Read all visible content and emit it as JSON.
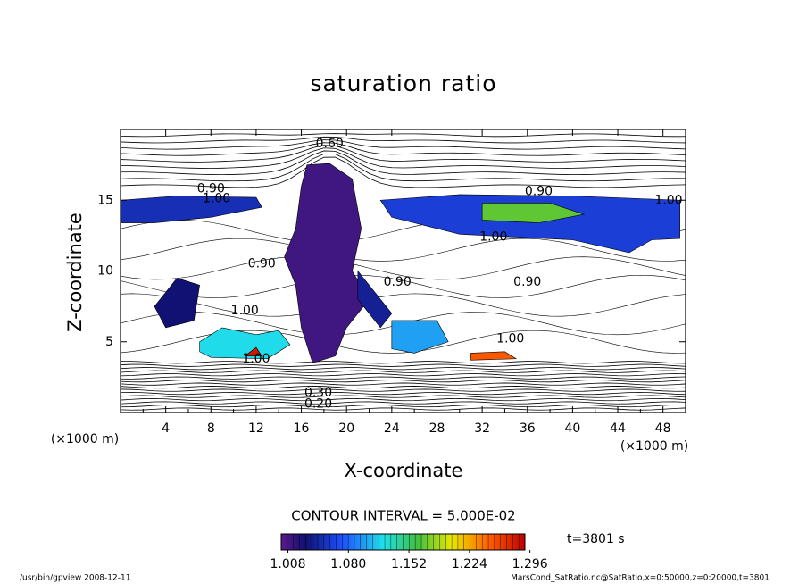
{
  "chart_data": {
    "type": "contour",
    "title": "saturation ratio",
    "xlabel": "X-coordinate",
    "ylabel": "Z-coordinate",
    "x_unit": "(×1000 m)",
    "y_unit": "(×1000 m)",
    "xlim": [
      0,
      50
    ],
    "xticks": [
      4,
      8,
      12,
      16,
      20,
      24,
      28,
      32,
      36,
      40,
      44,
      48
    ],
    "ylim": [
      0,
      20
    ],
    "yticks": [
      5,
      10,
      15
    ],
    "contour_interval": "CONTOUR INTERVAL = 5.000E-02",
    "time_label": "t=3801 s",
    "clim": [
      1.0,
      1.29
    ],
    "cticks": [
      1.008,
      {
        "value": 1.08,
        "label": "1.080"
      },
      1.152,
      1.224,
      1.296
    ],
    "contour_labels": [
      {
        "value": 0.6,
        "label": "0.60",
        "x": 18.5,
        "z": 19.0
      },
      {
        "value": 0.9,
        "label": "0.90",
        "x": 8,
        "z": 15.8
      },
      {
        "value": 1,
        "label": "1.00",
        "x": 8.5,
        "z": 15.1
      },
      {
        "value": 0.9,
        "label": "0.90",
        "x": 37,
        "z": 15.6
      },
      {
        "value": 1,
        "label": "1.00",
        "x": 48.5,
        "z": 15.0
      },
      {
        "value": 1,
        "label": "1.00",
        "x": 33,
        "z": 12.4
      },
      {
        "value": 0.9,
        "label": "0.90",
        "x": 12.5,
        "z": 10.5
      },
      {
        "value": 0.9,
        "label": "0.90",
        "x": 24.5,
        "z": 9.2
      },
      {
        "value": 0.9,
        "label": "0.90",
        "x": 36,
        "z": 9.2
      },
      {
        "value": 1,
        "label": "1.00",
        "x": 11,
        "z": 7.2
      },
      {
        "value": 1,
        "label": "1.00",
        "x": 12,
        "z": 3.8
      },
      {
        "value": 1,
        "label": "1.00",
        "x": 34.5,
        "z": 5.2
      },
      {
        "value": 0.3,
        "label": "0.30",
        "x": 17.5,
        "z": 1.4
      },
      {
        "value": 0.2,
        "label": "0.20",
        "x": 17.5,
        "z": 0.6
      }
    ],
    "regions": [
      {
        "level": 1.05,
        "points": [
          [
            0,
            15
          ],
          [
            5,
            15.3
          ],
          [
            12,
            15.2
          ],
          [
            12.5,
            14.5
          ],
          [
            8,
            13.8
          ],
          [
            3,
            13.4
          ],
          [
            0,
            13.4
          ]
        ]
      },
      {
        "level": 1.06,
        "points": [
          [
            23,
            15
          ],
          [
            30,
            15.4
          ],
          [
            40,
            15.3
          ],
          [
            49.5,
            15
          ],
          [
            49.5,
            12.3
          ],
          [
            47,
            12.2
          ],
          [
            45,
            11.3
          ],
          [
            40,
            12.2
          ],
          [
            30,
            12.6
          ],
          [
            24,
            13.8
          ]
        ]
      },
      {
        "level": 1.17,
        "points": [
          [
            32,
            14.8
          ],
          [
            38,
            14.8
          ],
          [
            41,
            14
          ],
          [
            37,
            13.4
          ],
          [
            32,
            13.6
          ]
        ]
      },
      {
        "level": 1.01,
        "points": [
          [
            16.5,
            17.5
          ],
          [
            18.5,
            17.6
          ],
          [
            20.5,
            16.5
          ],
          [
            21.3,
            13
          ],
          [
            20.5,
            10
          ],
          [
            22,
            8
          ],
          [
            20,
            6
          ],
          [
            19,
            4
          ],
          [
            17,
            3.5
          ],
          [
            16,
            6
          ],
          [
            15.5,
            9
          ],
          [
            14.5,
            11
          ],
          [
            15.5,
            13
          ],
          [
            16,
            16
          ]
        ]
      },
      {
        "level": 1.12,
        "points": [
          [
            7,
            5
          ],
          [
            9,
            6
          ],
          [
            12,
            5.5
          ],
          [
            14,
            5.8
          ],
          [
            15,
            4.8
          ],
          [
            13,
            3.8
          ],
          [
            8,
            3.9
          ],
          [
            7,
            4.3
          ]
        ]
      },
      {
        "level": 1.28,
        "points": [
          [
            11,
            4
          ],
          [
            12.5,
            4
          ],
          [
            12,
            4.6
          ]
        ]
      },
      {
        "level": 1.1,
        "points": [
          [
            24,
            6.5
          ],
          [
            28,
            6.5
          ],
          [
            29,
            5
          ],
          [
            26,
            4.2
          ],
          [
            24,
            4.5
          ]
        ]
      },
      {
        "level": 1.25,
        "points": [
          [
            31,
            4.2
          ],
          [
            34,
            4.3
          ],
          [
            35,
            3.8
          ],
          [
            31,
            3.7
          ]
        ]
      },
      {
        "level": 1.03,
        "points": [
          [
            3,
            7.5
          ],
          [
            5,
            9.5
          ],
          [
            7,
            9
          ],
          [
            6.5,
            6.5
          ],
          [
            4,
            6
          ]
        ]
      },
      {
        "level": 1.04,
        "points": [
          [
            21,
            10
          ],
          [
            23,
            8
          ],
          [
            24,
            7
          ],
          [
            23,
            6
          ],
          [
            21,
            8
          ]
        ]
      }
    ],
    "footer_left": "/usr/bin/gpview  2008-12-11",
    "footer_right": "MarsCond_SatRatio.nc@SatRatio,x=0:50000,z=0:20000,t=3801"
  }
}
